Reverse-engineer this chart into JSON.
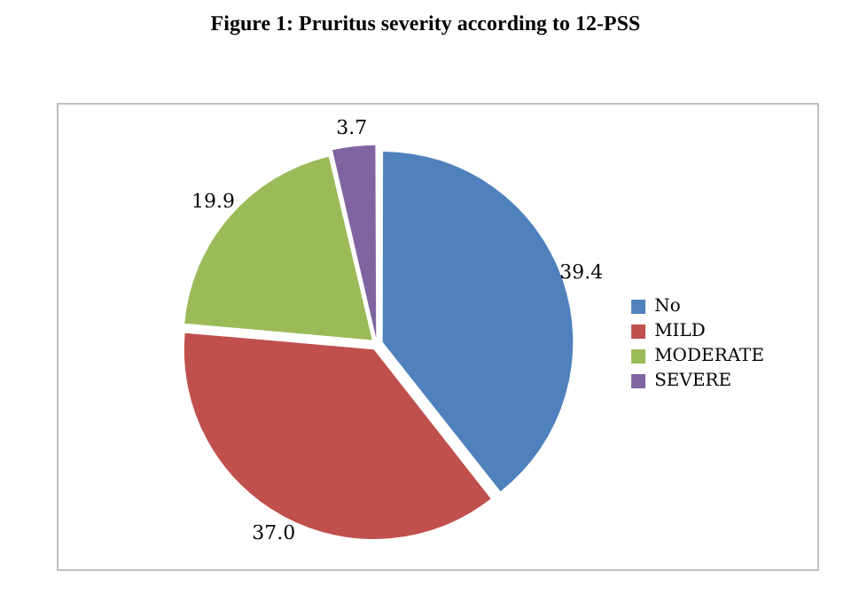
{
  "chart_data": {
    "type": "pie",
    "title": "Figure 1: Pruritus severity according to 12-PSS",
    "categories": [
      "No",
      "MILD",
      "MODERATE",
      "SEVERE"
    ],
    "values": [
      39.4,
      37.0,
      19.9,
      3.7
    ],
    "colors": [
      "#4f81bd",
      "#c0504d",
      "#9bbb59",
      "#8064a2"
    ],
    "value_labels": [
      "39.4",
      "37.0",
      "19.9",
      "3.7"
    ],
    "legend": "right"
  }
}
